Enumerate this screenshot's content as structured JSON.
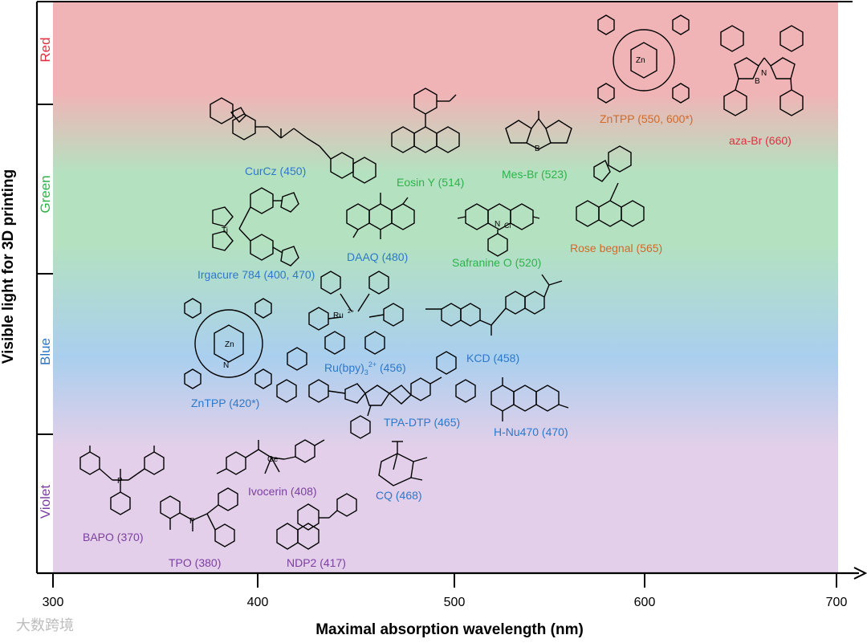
{
  "figure": {
    "y_axis_title": "Visible light for 3D printing",
    "x_axis_title": "Maximal absorption wavelength (nm)",
    "x_ticks": [
      "300",
      "400",
      "500",
      "600",
      "700"
    ],
    "bands": [
      {
        "name": "Red",
        "color": "#e03040"
      },
      {
        "name": "Green",
        "color": "#2db34a"
      },
      {
        "name": "Blue",
        "color": "#2e78c8"
      },
      {
        "name": "Violet",
        "color": "#7b3fa0"
      }
    ],
    "background_colors": {
      "red": "#f0b4b6",
      "green": "#b4e2c0",
      "blue": "#a9cfee",
      "violet": "#e3cfe9"
    }
  },
  "labels": {
    "bapo": "BAPO (370)",
    "tpo": "TPO (380)",
    "ivocerin": "Ivocerin (408)",
    "ndp2": "NDP2 (417)",
    "cq": "CQ (468)",
    "zntpp_blue": "ZnTPP (420*)",
    "rubpy_main": "Ru(bpy)",
    "rubpy_sub": "3",
    "rubpy_sup": "2+",
    "rubpy_end": " (456)",
    "tpa_dtp": "TPA-DTP (465)",
    "kcd": "KCD (458)",
    "hnu470": "H-Nu470 (470)",
    "irgacure": "Irgacure 784 (400, 470)",
    "daaq": "DAAQ (480)",
    "safranine": "Safranine O (520)",
    "rose": "Rose begnal (565)",
    "curcz": "CurCz (450)",
    "eosin": "Eosin Y (514)",
    "mesbr": "Mes-Br (523)",
    "zntpp_red": "ZnTPP (550, 600*)",
    "azabr": "aza-Br (660)"
  },
  "label_colors": {
    "violet": "#7b3fa0",
    "blue": "#2e78c8",
    "green": "#2db34a",
    "orange": "#d06a2a",
    "red": "#e03040"
  },
  "watermark": "大数跨境"
}
